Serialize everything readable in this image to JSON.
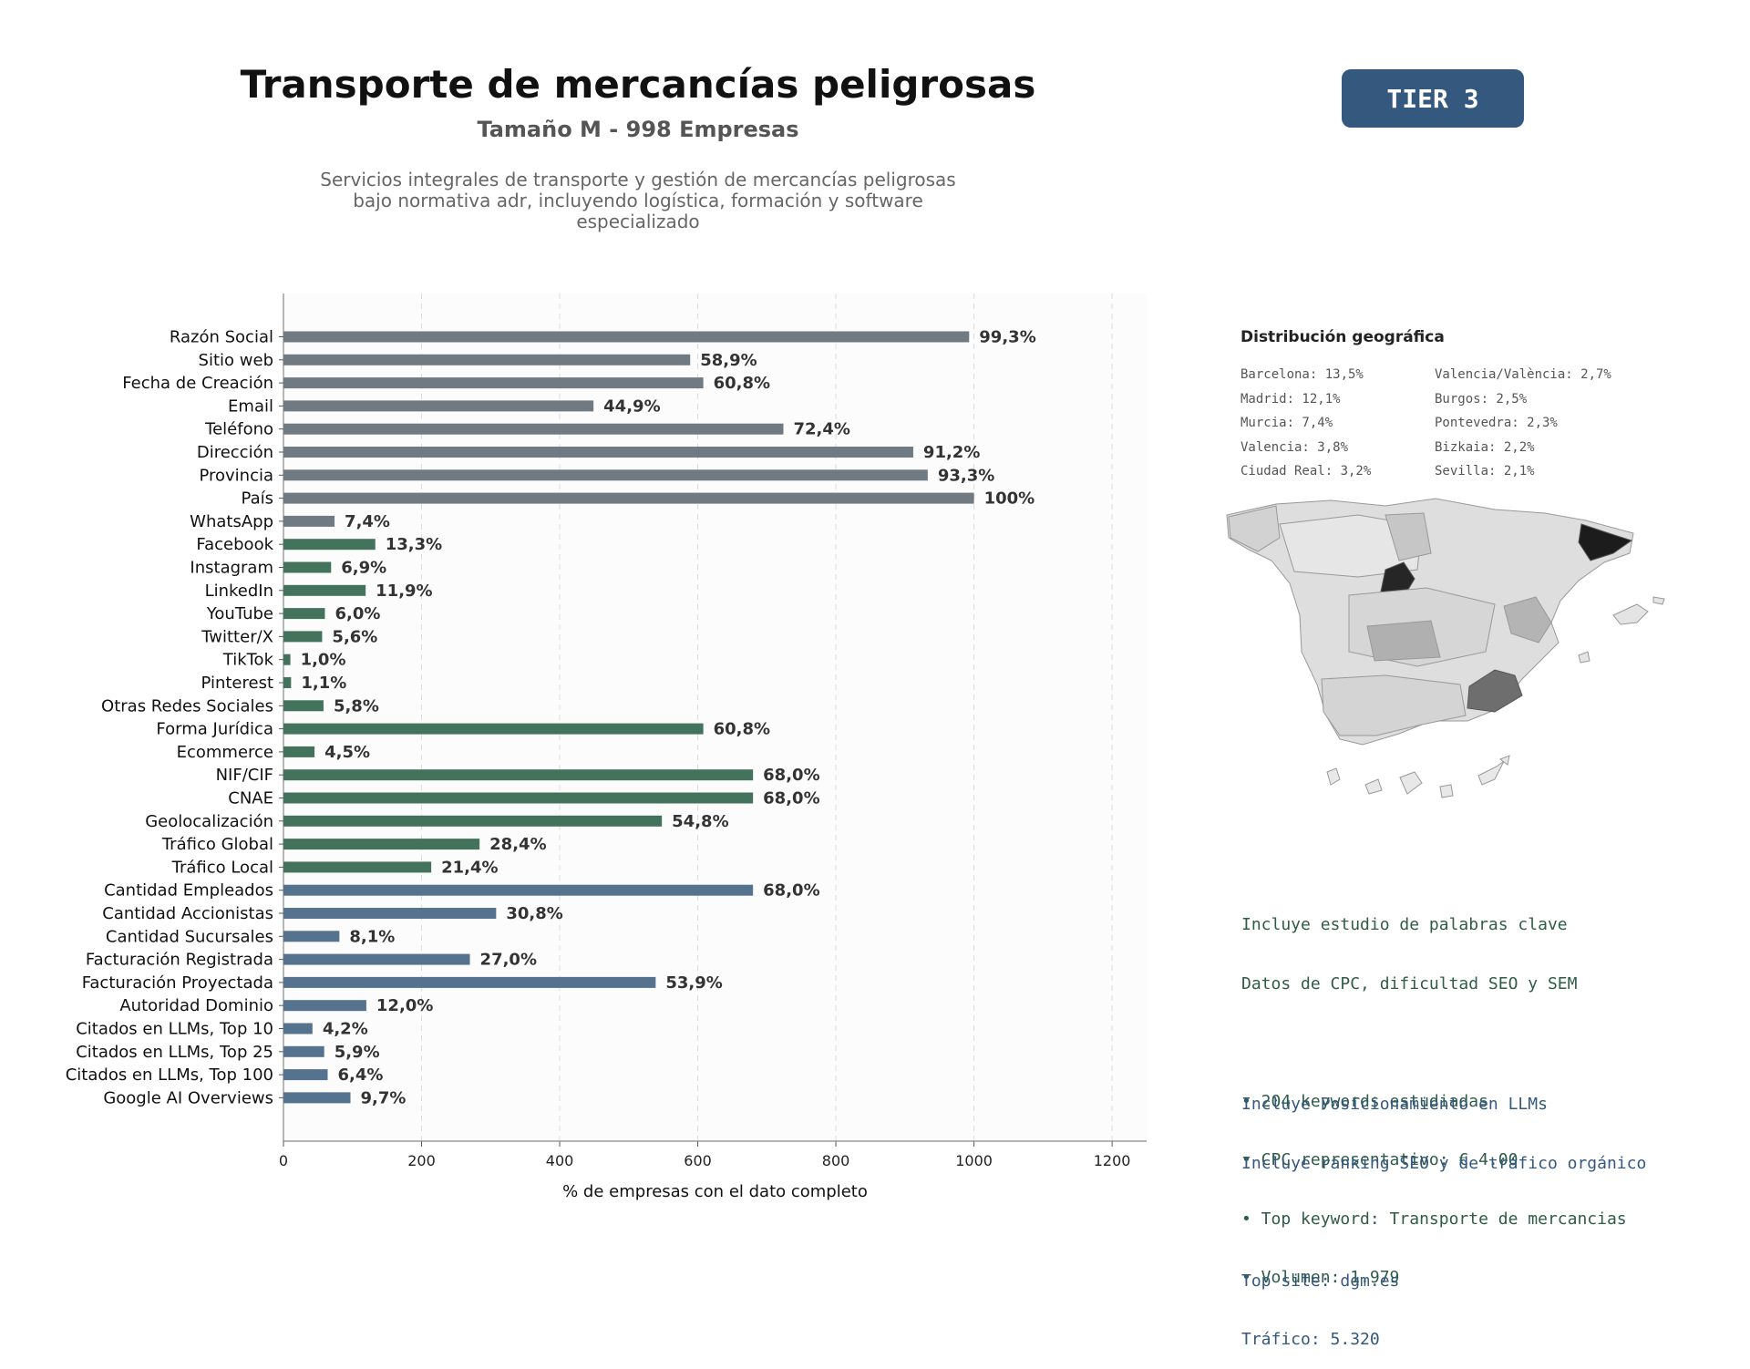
{
  "header": {
    "title": "Transporte de mercancías peligrosas",
    "subtitle": "Tamaño M - 998 Empresas",
    "description_lines": [
      "Servicios integrales de transporte y gestión de mercancías peligrosas",
      "bajo normativa adr, incluyendo logística, formación y software",
      "especializado"
    ],
    "tier_badge": "TIER 3"
  },
  "chart_data": {
    "type": "bar",
    "orientation": "horizontal",
    "xlabel": "% de empresas con el dato completo",
    "xlim": [
      0,
      1250
    ],
    "x_ticks": [
      0,
      200,
      400,
      600,
      800,
      1000,
      1200
    ],
    "grid": "vertical dashed",
    "categories": [
      "Razón Social",
      "Sitio web",
      "Fecha de Creación",
      "Email",
      "Teléfono",
      "Dirección",
      "Provincia",
      "País",
      "WhatsApp",
      "Facebook",
      "Instagram",
      "LinkedIn",
      "YouTube",
      "Twitter/X",
      "TikTok",
      "Pinterest",
      "Otras Redes Sociales",
      "Forma Jurídica",
      "Ecommerce",
      "NIF/CIF",
      "CNAE",
      "Geolocalización",
      "Tráfico Global",
      "Tráfico Local",
      "Cantidad Empleados",
      "Cantidad Accionistas",
      "Cantidad Sucursales",
      "Facturación Registrada",
      "Facturación Proyectada",
      "Autoridad Dominio",
      "Citados en LLMs, Top 10",
      "Citados en LLMs, Top 25",
      "Citados en LLMs, Top 100",
      "Google AI Overviews"
    ],
    "values": [
      993,
      589,
      608,
      449,
      724,
      912,
      933,
      1000,
      74,
      133,
      69,
      119,
      60,
      56,
      10,
      11,
      58,
      608,
      45,
      680,
      680,
      548,
      284,
      214,
      680,
      308,
      81,
      270,
      539,
      120,
      42,
      59,
      64,
      97
    ],
    "data_labels": [
      "99,3%",
      "58,9%",
      "60,8%",
      "44,9%",
      "72,4%",
      "91,2%",
      "93,3%",
      "100%",
      "7,4%",
      "13,3%",
      "6,9%",
      "11,9%",
      "6,0%",
      "5,6%",
      "1,0%",
      "1,1%",
      "5,8%",
      "60,8%",
      "4,5%",
      "68,0%",
      "68,0%",
      "54,8%",
      "28,4%",
      "21,4%",
      "68,0%",
      "30,8%",
      "8,1%",
      "27,0%",
      "53,9%",
      "12,0%",
      "4,2%",
      "5,9%",
      "6,4%",
      "9,7%"
    ],
    "bar_groups": [
      "gray",
      "gray",
      "gray",
      "gray",
      "gray",
      "gray",
      "gray",
      "gray",
      "gray",
      "green",
      "green",
      "green",
      "green",
      "green",
      "green",
      "green",
      "green",
      "green",
      "green",
      "green",
      "green",
      "green",
      "green",
      "green",
      "blue",
      "blue",
      "blue",
      "blue",
      "blue",
      "blue",
      "blue",
      "blue",
      "blue",
      "blue"
    ],
    "colors": {
      "gray": "#6f7a82",
      "green": "#44735d",
      "blue": "#55738e"
    }
  },
  "geo": {
    "title": "Distribución geográfica",
    "col1": [
      "Barcelona: 13,5%",
      "Madrid: 12,1%",
      "Murcia: 7,4%",
      "Valencia: 3,8%",
      "Ciudad Real: 3,2%"
    ],
    "col2": [
      "Valencia/València: 2,7%",
      "Burgos: 2,5%",
      "Pontevedra: 2,3%",
      "Bizkaia: 2,2%",
      "Sevilla: 2,1%"
    ]
  },
  "keywords": {
    "lines": [
      "Incluye estudio de palabras clave",
      "Datos de CPC, dificultad SEO y SEM",
      "",
      "• 204 keywords estudiadas",
      "• CPC representativo: € 4.00",
      "• Top keyword: Transporte de mercancias",
      "• Volumen: 1.979"
    ],
    "color": "#2f5c48"
  },
  "llm": {
    "lines": [
      "Incluye Posicionamiento en LLMs",
      "Incluye ranking SEO y de tráfico orgánico",
      "",
      "Top site: dgm.es",
      "Tráfico: 5.320"
    ],
    "color": "#34587e"
  }
}
